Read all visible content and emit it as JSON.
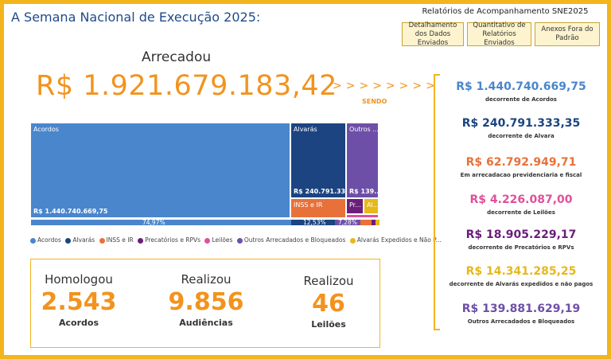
{
  "title": "A Semana Nacional de Execução 2025:",
  "reports": {
    "title": "Relatórios de Acompanhamento SNE2025",
    "buttons": [
      "Detalhamento dos Dados Enviados",
      "Quantitativo de Relatórios Enviados",
      "Anexos Fora do Padrão"
    ]
  },
  "main": {
    "arrecadou_label": "Arrecadou",
    "total": "R$ 1.921.679.183,42",
    "arrows": ">>>>>>>>",
    "sendo": "SENDO"
  },
  "treemap": {
    "acordos_label": "Acordos",
    "acordos_value": "R$ 1.440.740.669,75",
    "acordos_pct": "74,97%",
    "alvaras_label": "Alvarás",
    "alvaras_value": "R$ 240.791.333,...",
    "alvaras_pct": "12,53%",
    "outros_label": "Outros ...",
    "outros_value": "R$ 139....",
    "outros_pct": "7,28%",
    "inss_label": "INSS e IR",
    "prec_label": "Pr...",
    "alvexp_label": "Al..."
  },
  "legend": [
    "Acordos",
    "Alvarás",
    "INSS e IR",
    "Precatórios e RPVs",
    "Leilões",
    "Outros Arrecadados e Bloqueados",
    "Alvarás Expedidos e Não P..."
  ],
  "colors": {
    "acordos": "#4a86cc",
    "alvaras": "#1b4480",
    "inss": "#e8713a",
    "precatorios": "#6a1f7a",
    "leiloes": "#e0509a",
    "outros": "#6e4fa8",
    "alvaras_exp": "#e6b81c",
    "accent": "#f2931e",
    "border": "#f2b51c"
  },
  "kpis": [
    {
      "top": "Homologou",
      "value": "2.543",
      "bottom": "Acordos"
    },
    {
      "top": "Realizou",
      "value": "9.856",
      "bottom": "Audiências"
    },
    {
      "top": "Realizou",
      "value": "46",
      "bottom": "Leilões"
    }
  ],
  "breakdown": [
    {
      "value": "R$ 1.440.740.669,75",
      "desc": "decorrente de Acordos",
      "color": "#4a86cc"
    },
    {
      "value": "R$ 240.791.333,35",
      "desc": "decorrente de Alvara",
      "color": "#1b4480"
    },
    {
      "value": "R$ 62.792.949,71",
      "desc": "Em arrecadacao previdenciaria e fiscal",
      "color": "#e8713a"
    },
    {
      "value": "R$ 4.226.087,00",
      "desc": "decorrente de Leilões",
      "color": "#e0509a"
    },
    {
      "value": "R$ 18.905.229,17",
      "desc": "decorrente de Precatórios e RPVs",
      "color": "#6a1f7a"
    },
    {
      "value": "R$ 14.341.285,25",
      "desc": "decorrente de Alvarás expedidos e não pagos",
      "color": "#e6b81c"
    },
    {
      "value": "R$ 139.881.629,19",
      "desc": "Outros Arrecadados e Bloqueados",
      "color": "#6e4fa8"
    }
  ]
}
